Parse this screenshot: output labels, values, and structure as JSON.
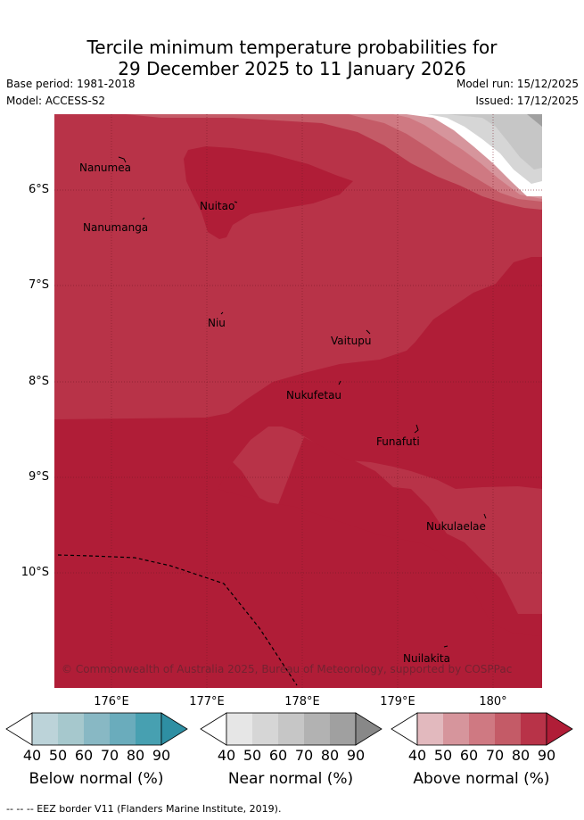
{
  "title": {
    "line1": "Tercile minimum temperature probabilities for",
    "line2": "29 December 2025 to 11 January 2026"
  },
  "meta": {
    "base_period": "Base period: 1981-2018",
    "model": "Model: ACCESS-S2",
    "model_run": "Model run: 15/12/2025",
    "issued": "Issued: 17/12/2025"
  },
  "axes": {
    "lat_labels": [
      "6°S",
      "7°S",
      "8°S",
      "9°S",
      "10°S"
    ],
    "lon_labels": [
      "176°E",
      "177°E",
      "178°E",
      "179°E",
      "180°"
    ]
  },
  "places": {
    "nanumea": "Nanumea",
    "nuitao": "Nuitao",
    "nanumanga": "Nanumanga",
    "niu": "Niu",
    "vaitupu": "Vaitupu",
    "nukufetau": "Nukufetau",
    "funafuti": "Funafuti",
    "nukulaelae": "Nukulaelae",
    "nuilakita": "Nuilakita"
  },
  "copyright": "© Commonwealth of Australia 2025, Bureau of Meteorology, supported by COSPPac",
  "colorbars": {
    "ticks": [
      "40",
      "50",
      "60",
      "70",
      "80",
      "90"
    ],
    "below": {
      "label": "Below normal (%)",
      "colors": [
        "#bcd3d9",
        "#a6c8cd",
        "#88b8c4",
        "#6aacbc",
        "#47a0b1",
        "#2e8fa3"
      ]
    },
    "near": {
      "label": "Near normal (%)",
      "colors": [
        "#e6e6e6",
        "#d6d6d6",
        "#c6c6c6",
        "#b2b2b2",
        "#a0a0a0",
        "#888888"
      ]
    },
    "above": {
      "label": "Above normal (%)",
      "colors": [
        "#e2b9be",
        "#d6959c",
        "#cf7982",
        "#c45b67",
        "#b83348",
        "#b01d37"
      ]
    }
  },
  "footer": "--  --  -- EEZ border V11 (Flanders Marine Institute, 2019)."
}
